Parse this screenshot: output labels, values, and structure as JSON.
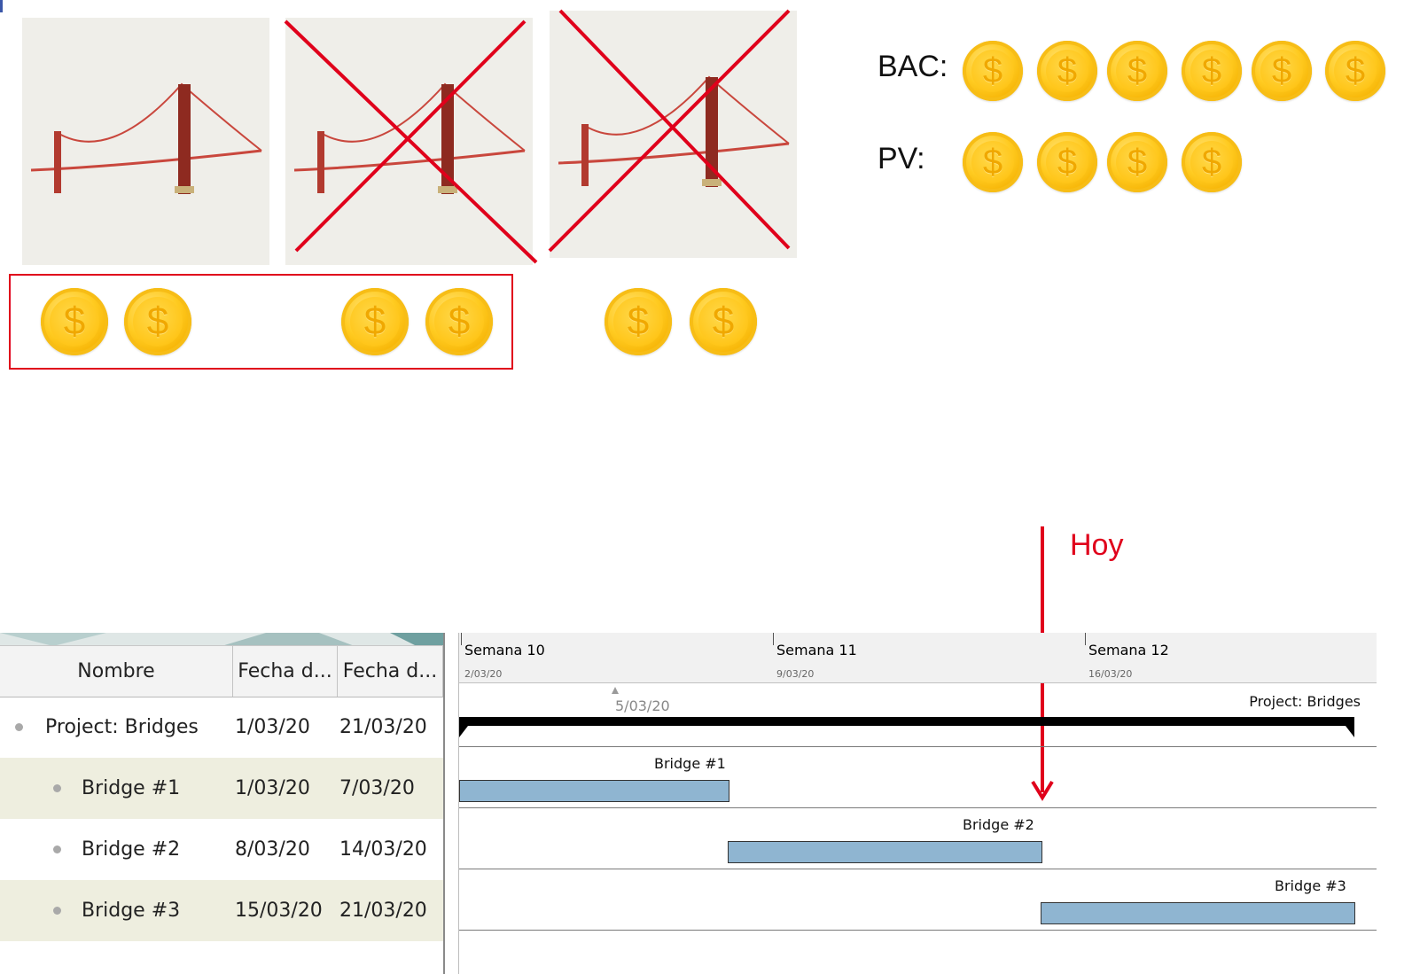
{
  "budget": {
    "bac_label": "BAC:",
    "pv_label": "PV:",
    "bac_coin_count": 6,
    "pv_coin_count": 4
  },
  "coin_symbol": "$",
  "today_label": "Hoy",
  "colors": {
    "accent_red": "#e0001b",
    "bar_fill": "#8fb5d1",
    "alt_row": "#eeeedf"
  },
  "table": {
    "headers": [
      "Nombre",
      "Fecha d...",
      "Fecha d..."
    ],
    "rows": [
      {
        "name": "Project: Bridges",
        "start": "1/03/20",
        "end": "21/03/20"
      },
      {
        "name": "Bridge #1",
        "start": "1/03/20",
        "end": "7/03/20"
      },
      {
        "name": "Bridge #2",
        "start": "8/03/20",
        "end": "14/03/20"
      },
      {
        "name": "Bridge #3",
        "start": "15/03/20",
        "end": "21/03/20"
      }
    ]
  },
  "timeline": {
    "weeks": [
      {
        "label": "Semana 10",
        "date": "2/03/20"
      },
      {
        "label": "Semana 11",
        "date": "9/03/20"
      },
      {
        "label": "Semana 12",
        "date": "16/03/20"
      }
    ],
    "marker_date": "5/03/20",
    "bars": [
      {
        "label": "Project: Bridges"
      },
      {
        "label": "Bridge #1"
      },
      {
        "label": "Bridge #2"
      },
      {
        "label": "Bridge #3"
      }
    ]
  }
}
